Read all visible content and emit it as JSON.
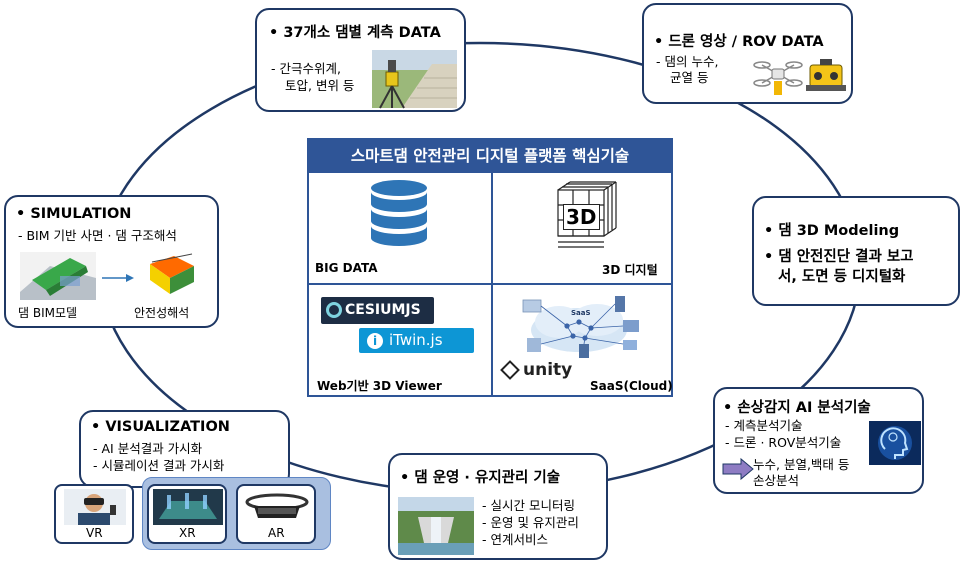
{
  "center": {
    "title": "스마트댐 안전관리 디지털 플랫폼 핵심기술",
    "cells": {
      "big_data": "BIG DATA",
      "digital_3d": "3D 디지털",
      "viewer": "Web기반 3D Viewer",
      "saas": "SaaS(Cloud)"
    },
    "icon_3d_text": "3D",
    "cesium_text": "CESIUMJS",
    "itwin_text": "iTwin.js",
    "unity_text": "unity",
    "saas_text": "SaaS"
  },
  "measurement": {
    "title": "• 37개소 댐별 계측 DATA",
    "line1": "-   간극수위계,",
    "line2": "토압, 변위 등"
  },
  "drone": {
    "title": "• 드론 영상 / ROV DATA",
    "line1": "-   댐의 누수,",
    "line2": "균열 등"
  },
  "modeling": {
    "bullet1": "• 댐 3D Modeling",
    "bullet2a": "• 댐 안전진단 결과 보고",
    "bullet2b": "서, 도면 등 디지털화"
  },
  "ai": {
    "title": "• 손상감지 AI 분석기술",
    "line1": "-   계측분석기술",
    "line2": "-   드론 · ROV분석기술",
    "line3": "누수, 분열,백태 등",
    "line4": "손상분석"
  },
  "operation": {
    "title": "• 댐 운영 · 유지관리 기술",
    "line1": "-   실시간 모니터링",
    "line2": "-   운영 및 유지관리",
    "line3": "-   연계서비스"
  },
  "visualization": {
    "title": "• VISUALIZATION",
    "line1": "-   AI 분석결과 가시화",
    "line2": "-   시뮬레이션 결과 가시화",
    "vr": "VR",
    "xr": "XR",
    "ar": "AR"
  },
  "simulation": {
    "title": "• SIMULATION",
    "line1": "-   BIM 기반 사면 · 댐 구조해석",
    "cap1": "댐 BIM모델",
    "cap2": "안전성해석"
  },
  "colors": {
    "border": "#1f3864",
    "header": "#2f5597",
    "db": "#2e75b6",
    "arrow": "#8e7cc3"
  }
}
